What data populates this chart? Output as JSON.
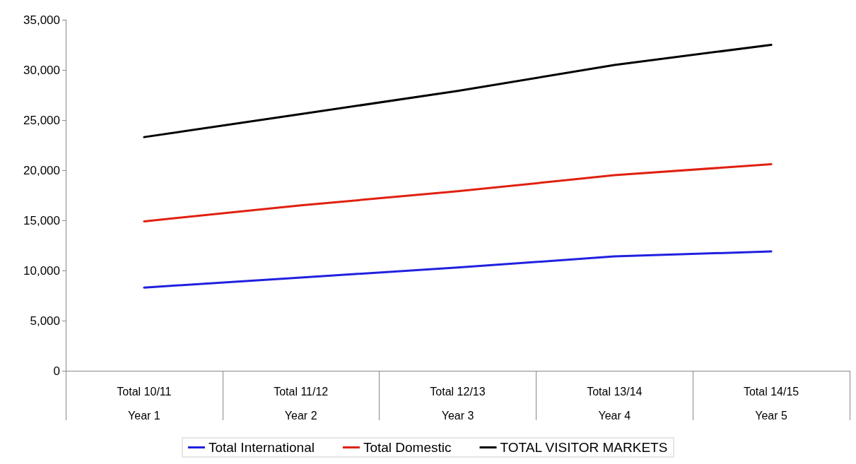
{
  "chart_data": {
    "type": "line",
    "categories": [
      "Total 10/11\nYear 1",
      "Total 11/12\nYear 2",
      "Total 12/13\nYear 3",
      "Total 13/14\nYear 4",
      "Total 14/15\nYear 5"
    ],
    "series": [
      {
        "name": "Total International",
        "color": "#2020e0",
        "values": [
          8300,
          9300,
          10300,
          11400,
          11900
        ]
      },
      {
        "name": "Total Domestic",
        "color": "#e02010",
        "values": [
          14900,
          16500,
          17900,
          19500,
          20600
        ]
      },
      {
        "name": "TOTAL VISITOR MARKETS",
        "color": "#000000",
        "values": [
          23300,
          25600,
          27900,
          30500,
          32500
        ]
      }
    ],
    "ylim": [
      0,
      35000
    ],
    "yticks": [
      0,
      {
        "value": 5000,
        "label": "5,000"
      },
      {
        "value": 10000,
        "label": "10,000"
      },
      {
        "value": 15000,
        "label": "15,000"
      },
      {
        "value": 20000,
        "label": "20,000"
      },
      {
        "value": 25000,
        "label": "25,000"
      },
      {
        "value": 30000,
        "label": "30,000"
      },
      {
        "value": 35000,
        "label": "35,000"
      }
    ],
    "grid": false,
    "legend": "bottom",
    "marker": "none",
    "line_style": "solid"
  }
}
